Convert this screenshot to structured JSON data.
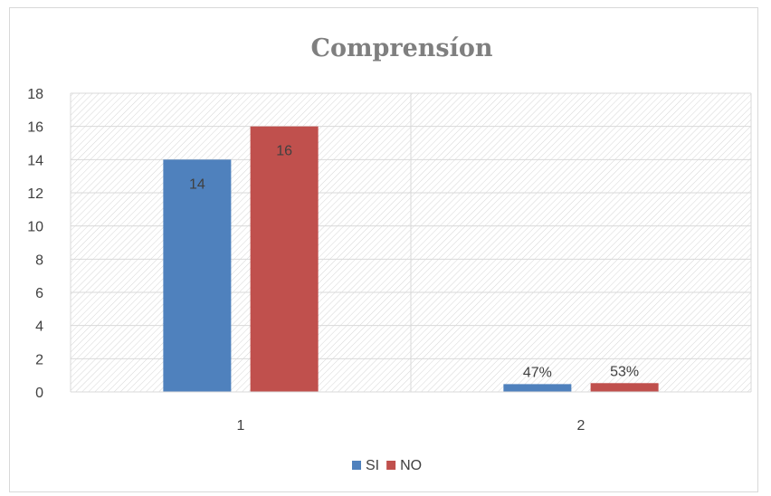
{
  "chart_data": {
    "type": "bar",
    "title": "Comprensíon",
    "xlabel": "",
    "ylabel": "",
    "categories": [
      "1",
      "2"
    ],
    "ylim": [
      0,
      18
    ],
    "yticks": [
      0,
      2,
      4,
      6,
      8,
      10,
      12,
      14,
      16,
      18
    ],
    "grid": true,
    "legend_position": "bottom",
    "series": [
      {
        "name": "SI",
        "color": "#4f81bd",
        "values": [
          14,
          0.47
        ],
        "labels": [
          "14",
          "47%"
        ]
      },
      {
        "name": "NO",
        "color": "#c0504d",
        "values": [
          16,
          0.53
        ],
        "labels": [
          "16",
          "53%"
        ]
      }
    ]
  }
}
